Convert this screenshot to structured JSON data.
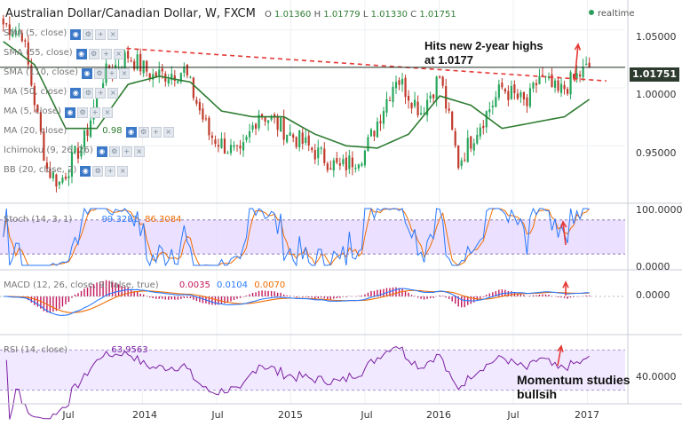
{
  "header": {
    "title": "Australian Dollar/Canadian Dollar, W, FXCM",
    "ohlc": [
      {
        "k": "O",
        "v": "1.01360"
      },
      {
        "k": "H",
        "v": "1.01779"
      },
      {
        "k": "L",
        "v": "1.01330"
      },
      {
        "k": "C",
        "v": "1.01751"
      }
    ],
    "realtime_label": "realtime"
  },
  "indicators": [
    {
      "label": "SMA (5, close)"
    },
    {
      "label": "SMA (55, close)"
    },
    {
      "label": "SMA (110, close)"
    },
    {
      "label": "MA (50, close)"
    },
    {
      "label": "MA (5, close)"
    },
    {
      "label": "MA (20, close)",
      "value": "0.98"
    },
    {
      "label": "Ichimoku (9, 26, 26)"
    },
    {
      "label": "BB (20, close, 2)"
    }
  ],
  "last_price_label": "1.01751",
  "annotations": {
    "highs_line1": "Hits new 2-year highs",
    "highs_line2": "at 1.0177",
    "momentum_line1": "Momentum studies",
    "momentum_line2": "bullsih"
  },
  "colors": {
    "up_candle": "#26a65b",
    "down_candle": "#c0392b",
    "ma_line": "#2e7d32",
    "trendline": "#e53935",
    "annotation_arrow": "#e53935",
    "stoch_k": "#2979ff",
    "stoch_d": "#ef6c00",
    "macd_line": "#2979ff",
    "signal_line": "#ef6c00",
    "histogram": "#c2185b",
    "rsi_line": "#7b1fa2",
    "band_fill": "#e6d8ff"
  },
  "chart_data": {
    "type": "candlestick",
    "x_ticks": [
      "Jul",
      "2014",
      "Jul",
      "2015",
      "Jul",
      "2016",
      "Jul",
      "2017"
    ],
    "price_axis": {
      "ticks": [
        "1.05000",
        "1.00000",
        "0.95000"
      ],
      "ylim": [
        0.905,
        1.072
      ]
    },
    "last_price": 1.01751,
    "resistance_level": 1.0177,
    "trendline": {
      "from": [
        "2014-Apr",
        1.034
      ],
      "to": [
        "2016-Dec",
        1.006
      ]
    },
    "price_path": {
      "weeks": [
        0,
        6,
        14,
        18,
        26,
        32,
        40,
        48,
        58,
        66,
        76,
        82,
        92,
        100,
        108,
        116,
        126,
        134,
        140,
        146,
        152,
        160,
        168,
        172,
        178,
        184,
        188
      ],
      "close": [
        1.055,
        1.048,
        0.93,
        0.918,
        0.955,
        1.01,
        1.028,
        1.01,
        1.015,
        0.96,
        0.94,
        0.98,
        0.96,
        0.945,
        0.93,
        0.945,
        1.01,
        0.98,
        1.01,
        0.935,
        0.965,
        1.0,
        0.985,
        1.01,
        0.995,
        1.01,
        1.0175
      ]
    },
    "moving_average": {
      "weeks": [
        0,
        10,
        20,
        30,
        40,
        50,
        60,
        70,
        80,
        90,
        100,
        110,
        120,
        130,
        140,
        150,
        160,
        170,
        180,
        188
      ],
      "values": [
        1.04,
        1.02,
        0.965,
        0.965,
        1.003,
        1.01,
        1.005,
        0.98,
        0.975,
        0.975,
        0.96,
        0.95,
        0.948,
        0.96,
        0.993,
        0.985,
        0.965,
        0.97,
        0.975,
        0.99
      ]
    },
    "stochastic": {
      "label": "Stoch (14, 3, 1)",
      "k_value": "99.3281",
      "d_value": "86.3084",
      "axis_ticks": [
        "100.0000",
        "0.0000"
      ],
      "ylim": [
        0,
        100
      ],
      "band": [
        20,
        80
      ]
    },
    "macd": {
      "label": "MACD (12, 26, close, 9, false, true)",
      "values": [
        "0.0035",
        "0.0104",
        "0.0070"
      ],
      "axis_ticks": [
        "0.0000"
      ]
    },
    "rsi": {
      "label": "RSI (14, close)",
      "value": "63.9563",
      "axis_ticks": [
        "40.0000"
      ],
      "ylim": [
        20,
        80
      ],
      "band": [
        30,
        70
      ]
    }
  }
}
